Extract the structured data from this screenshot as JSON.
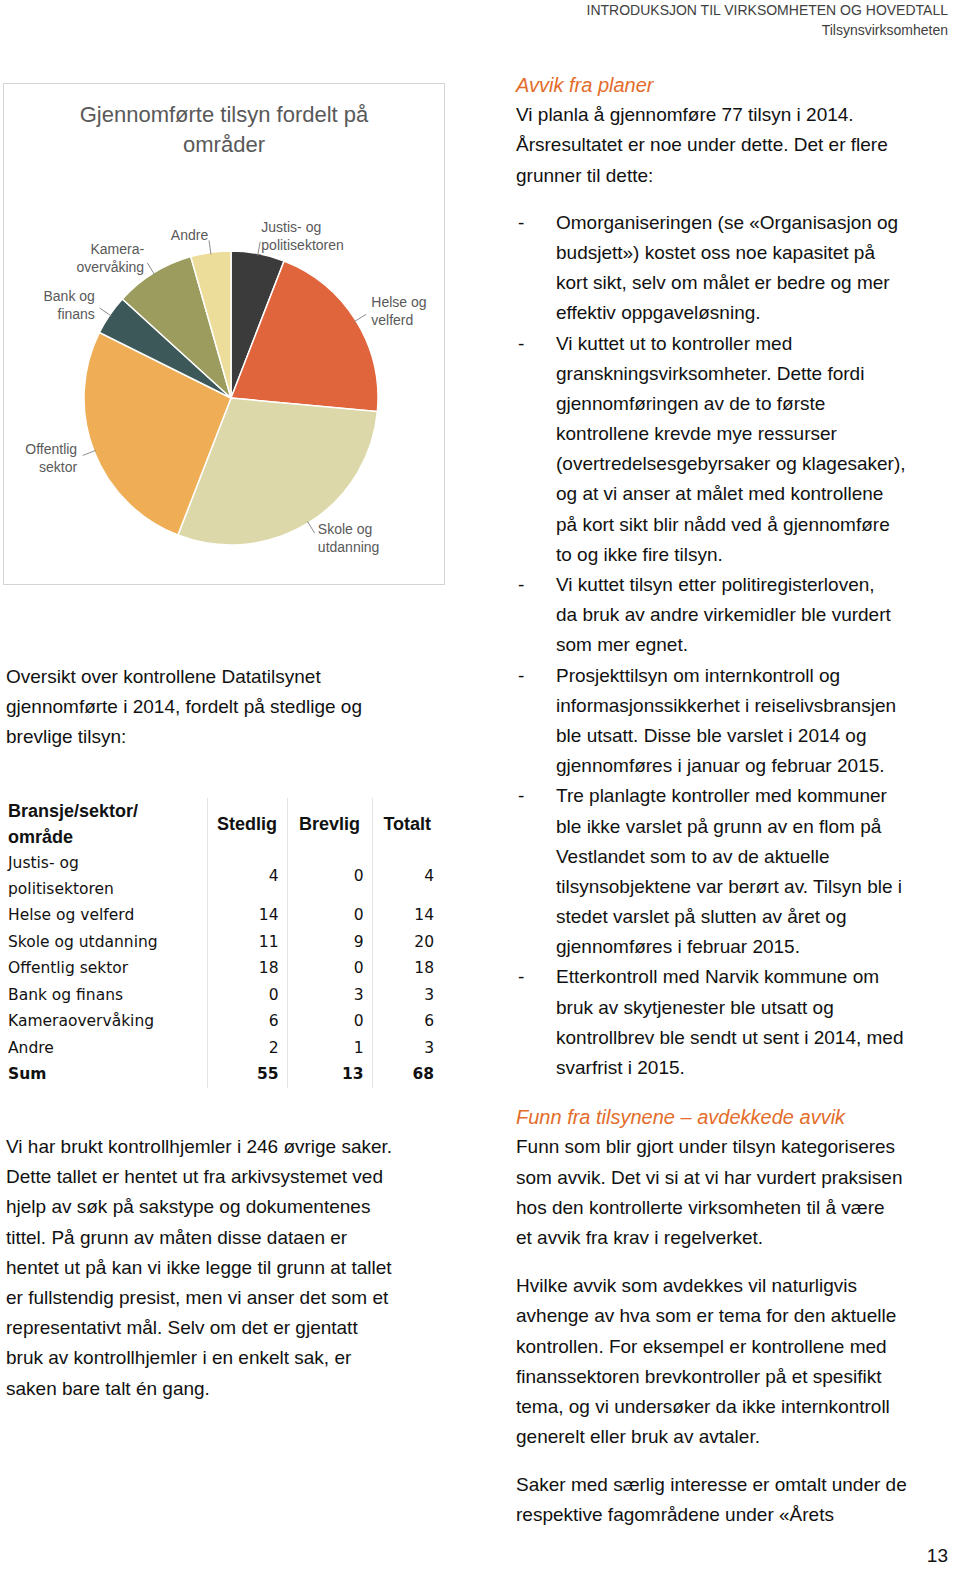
{
  "header": {
    "section": "INTRODUKSJON TIL VIRKSOMHETEN OG HOVEDTALL",
    "subsection": "Tilsynsvirksomheten"
  },
  "chart_data": {
    "type": "pie",
    "title": "Gjennomførte tilsyn fordelt på\nområder",
    "categories": [
      "Justis- og\npolitisektoren",
      "Helse og\nvelferd",
      "Skole og\nutdanning",
      "Offentlig\nsektor",
      "Bank og\nfinans",
      "Kamera-\novervåking",
      "Andre"
    ],
    "values": [
      4,
      14,
      20,
      18,
      3,
      6,
      3
    ],
    "colors": [
      "#3b3b3b",
      "#e0653d",
      "#dcd8a9",
      "#efae55",
      "#3d5858",
      "#9c9c5e",
      "#eddd9a"
    ]
  },
  "intro": [
    "Oversikt over kontrollene Datatilsynet",
    "gjennomførte i 2014, fordelt på stedlige og",
    "brevlige tilsyn:"
  ],
  "table": {
    "header": [
      "Bransje/sektor/\nområde",
      "Stedlig",
      "Brevlig",
      "Totalt"
    ],
    "rows": [
      [
        "Justis- og\npolitisektoren",
        4,
        0,
        4
      ],
      [
        "Helse og velferd",
        14,
        0,
        14
      ],
      [
        "Skole og utdanning",
        11,
        9,
        20
      ],
      [
        "Offentlig sektor",
        18,
        0,
        18
      ],
      [
        "Bank og finans",
        0,
        3,
        3
      ],
      [
        "Kameraovervåking",
        6,
        0,
        6
      ],
      [
        "Andre",
        2,
        1,
        3
      ]
    ],
    "sum": [
      "Sum",
      55,
      13,
      68
    ]
  },
  "note": [
    "Vi har brukt kontrollhjemler i 246 øvrige saker.",
    "Dette tallet er hentet ut fra arkivsystemet ved",
    "hjelp av søk på sakstype og dokumentenes",
    "tittel. På grunn av måten disse dataen er",
    "hentet ut på kan vi ikke legge til grunn at tallet",
    "er fullstendig presist, men vi anser det som et",
    "representativt mål. Selv om det er gjentatt",
    "bruk av kontrollhjemler i en enkelt sak, er",
    "saken bare talt én gang."
  ],
  "sections": [
    {
      "heading": "Avvik fra planer",
      "paragraphs": [
        [
          "Vi planla å gjennomføre 77 tilsyn i 2014.",
          "Årsresultatet er noe under dette. Det er flere",
          "grunner til dette:"
        ]
      ],
      "bullets": [
        [
          "Omorganiseringen (se «Organisasjon og",
          "budsjett») kostet oss noe kapasitet på",
          "kort sikt, selv om målet er bedre og mer",
          "effektiv oppgaveløsning."
        ],
        [
          "Vi kuttet ut to kontroller med",
          "granskningsvirksomheter. Dette fordi",
          "gjennomføringen av de to første",
          "kontrollene krevde mye ressurser",
          "(overtredelsesgebyrsaker og klagesaker),",
          "og at vi anser at målet med kontrollene",
          "på kort sikt blir nådd ved å gjennomføre",
          "to og ikke fire tilsyn."
        ],
        [
          "Vi kuttet tilsyn etter politiregisterloven,",
          "da bruk av andre virkemidler ble vurdert",
          "som mer egnet."
        ],
        [
          "Prosjekttilsyn om internkontroll og",
          "informasjonssikkerhet i reiselivsbransjen",
          "ble utsatt. Disse ble varslet i 2014 og",
          "gjennomføres i januar og februar 2015."
        ],
        [
          "Tre planlagte kontroller med kommuner",
          "ble ikke varslet på grunn av en flom på",
          "Vestlandet som to av de aktuelle",
          "tilsynsobjektene var berørt av. Tilsyn ble i",
          "stedet varslet på slutten av året og",
          "gjennomføres i februar 2015."
        ],
        [
          "Etterkontroll med Narvik kommune om",
          "bruk av skytjenester ble utsatt og",
          "kontrollbrev ble sendt ut sent i 2014, med",
          "svarfrist i 2015."
        ]
      ]
    },
    {
      "heading": "Funn fra tilsynene – avdekkede avvik",
      "paragraphs": [
        [
          "Funn som blir gjort under tilsyn kategoriseres",
          "som avvik. Det vi si at vi har vurdert praksisen",
          "hos den kontrollerte virksomheten til å være",
          "et avvik fra krav i regelverket."
        ],
        [
          "Hvilke avvik som avdekkes vil naturligvis",
          "avhenge av hva som er tema for den aktuelle",
          "kontrollen. For eksempel er kontrollene med",
          "finanssektoren brevkontroller på et spesifikt",
          "tema, og vi undersøker da ikke internkontroll",
          "generelt eller bruk av avtaler."
        ],
        [
          "Saker med særlig interesse er omtalt under de",
          "respektive fagområdene under «Årets"
        ]
      ],
      "bullets": []
    }
  ],
  "page_number": 13
}
